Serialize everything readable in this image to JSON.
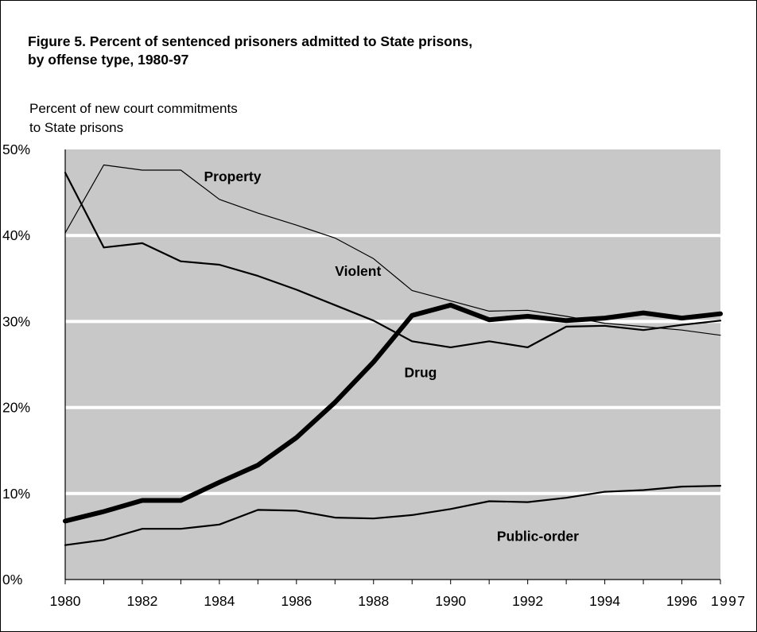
{
  "title_lines": [
    "Figure 5.  Percent of sentenced prisoners admitted to State prisons,",
    "by offense type, 1980-97"
  ],
  "ylabel_lines": [
    "Percent of new court commitments",
    "to State prisons"
  ],
  "chart_data": {
    "type": "line",
    "x": [
      1980,
      1981,
      1982,
      1983,
      1984,
      1985,
      1986,
      1987,
      1988,
      1989,
      1990,
      1991,
      1992,
      1993,
      1994,
      1995,
      1996,
      1997
    ],
    "x_tick_labels": [
      "1980",
      "1982",
      "1984",
      "1986",
      "1988",
      "1990",
      "1992",
      "1994",
      "1996",
      "1997"
    ],
    "y_tick_labels": [
      "0%",
      "10%",
      "20%",
      "30%",
      "40%",
      "50%"
    ],
    "ylim": [
      0,
      50
    ],
    "xlim": [
      1980,
      1997
    ],
    "background_color": "#c8c8c8",
    "gridline_color": "#ffffff",
    "line_color": "#000000",
    "series": [
      {
        "name": "Property",
        "values": [
          40.3,
          48.2,
          47.6,
          47.6,
          44.2,
          42.6,
          41.2,
          39.7,
          37.3,
          33.6,
          32.4,
          31.2,
          31.3,
          30.6,
          29.8,
          29.4,
          29.0,
          28.4
        ]
      },
      {
        "name": "Violent",
        "values": [
          47.3,
          38.6,
          39.1,
          37.0,
          36.6,
          35.3,
          33.7,
          31.9,
          30.1,
          27.7,
          27.0,
          27.7,
          27.0,
          29.4,
          29.5,
          29.0,
          29.6,
          30.1
        ]
      },
      {
        "name": "Drug",
        "values": [
          6.8,
          7.9,
          9.2,
          9.2,
          11.3,
          13.3,
          16.5,
          20.6,
          25.3,
          30.7,
          31.9,
          30.2,
          30.6,
          30.1,
          30.4,
          31.0,
          30.4,
          30.9
        ]
      },
      {
        "name": "Public-order",
        "values": [
          4.0,
          4.6,
          5.9,
          5.9,
          6.4,
          8.1,
          8.0,
          7.2,
          7.1,
          7.5,
          8.2,
          9.1,
          9.0,
          9.5,
          10.2,
          10.4,
          10.8,
          10.9
        ]
      }
    ]
  }
}
